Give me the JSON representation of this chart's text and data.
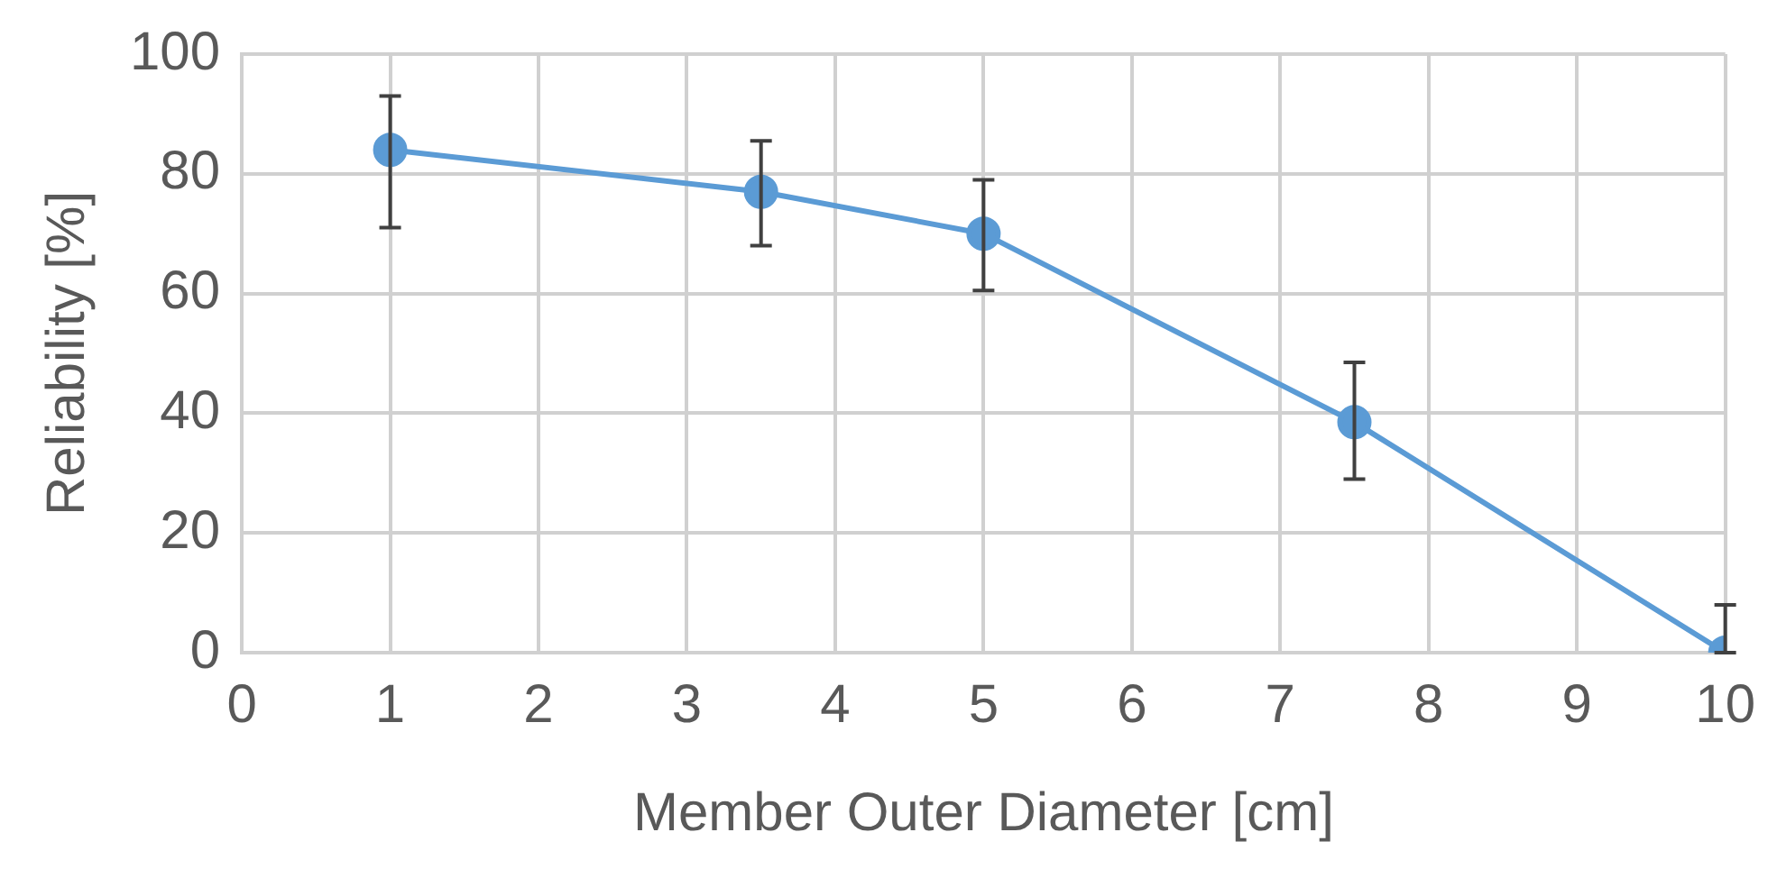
{
  "chart_data": {
    "type": "line",
    "xlabel": "Member Outer Diameter [cm]",
    "ylabel": "Reliability [%]",
    "x": [
      1,
      3.5,
      5,
      7.5,
      10
    ],
    "series": [
      {
        "color": "#5b9bd5",
        "values": [
          84,
          77,
          70,
          38.5,
          0
        ],
        "errors": [
          [
            71,
            93
          ],
          [
            68,
            85.5
          ],
          [
            60.5,
            79
          ],
          [
            29,
            48.5
          ],
          [
            0,
            8
          ]
        ]
      }
    ],
    "xlim": [
      0,
      10
    ],
    "xticks": [
      0,
      1,
      2,
      3,
      4,
      5,
      6,
      7,
      8,
      9,
      10
    ],
    "ylim": [
      0,
      100
    ],
    "yticks": [
      0,
      20,
      40,
      60,
      80,
      100
    ],
    "grid": true,
    "legend": false,
    "marker": "circle",
    "line_style": "solid"
  }
}
